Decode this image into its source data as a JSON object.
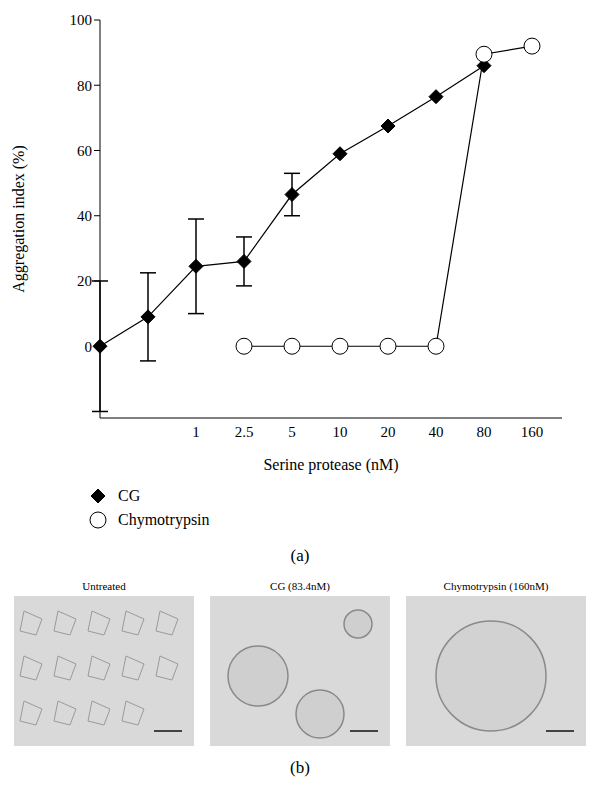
{
  "chart_data": {
    "type": "line",
    "x_label": "Serine protease (nM)",
    "y_label": "Aggregation index (%)",
    "panel_label": "(a)",
    "categories": [
      null,
      null,
      "1",
      "2.5",
      "5",
      "10",
      "20",
      "40",
      "80",
      "160"
    ],
    "series": [
      {
        "name": "CG",
        "color": "#000000",
        "marker": "filled_diamond",
        "values": [
          0,
          9,
          24.5,
          26,
          46.5,
          59,
          67.5,
          76.5,
          86,
          null
        ],
        "error": [
          20,
          13.5,
          14.5,
          7.5,
          6.5,
          null,
          null,
          null,
          null,
          null
        ]
      },
      {
        "name": "Chymotrypsin",
        "color": "#000000",
        "marker": "open_circle",
        "values": [
          null,
          null,
          null,
          0,
          0,
          0,
          0,
          0,
          89.5,
          92
        ]
      }
    ],
    "ylim": [
      -22,
      100
    ],
    "yticks": [
      0,
      20,
      40,
      60,
      80,
      100
    ],
    "legend": "bottom left"
  },
  "panel_b": {
    "label": "(b)",
    "images": [
      {
        "caption": "Untreated"
      },
      {
        "caption": "CG (83.4nM)"
      },
      {
        "caption": "Chymotrypsin (160nM)"
      }
    ]
  }
}
